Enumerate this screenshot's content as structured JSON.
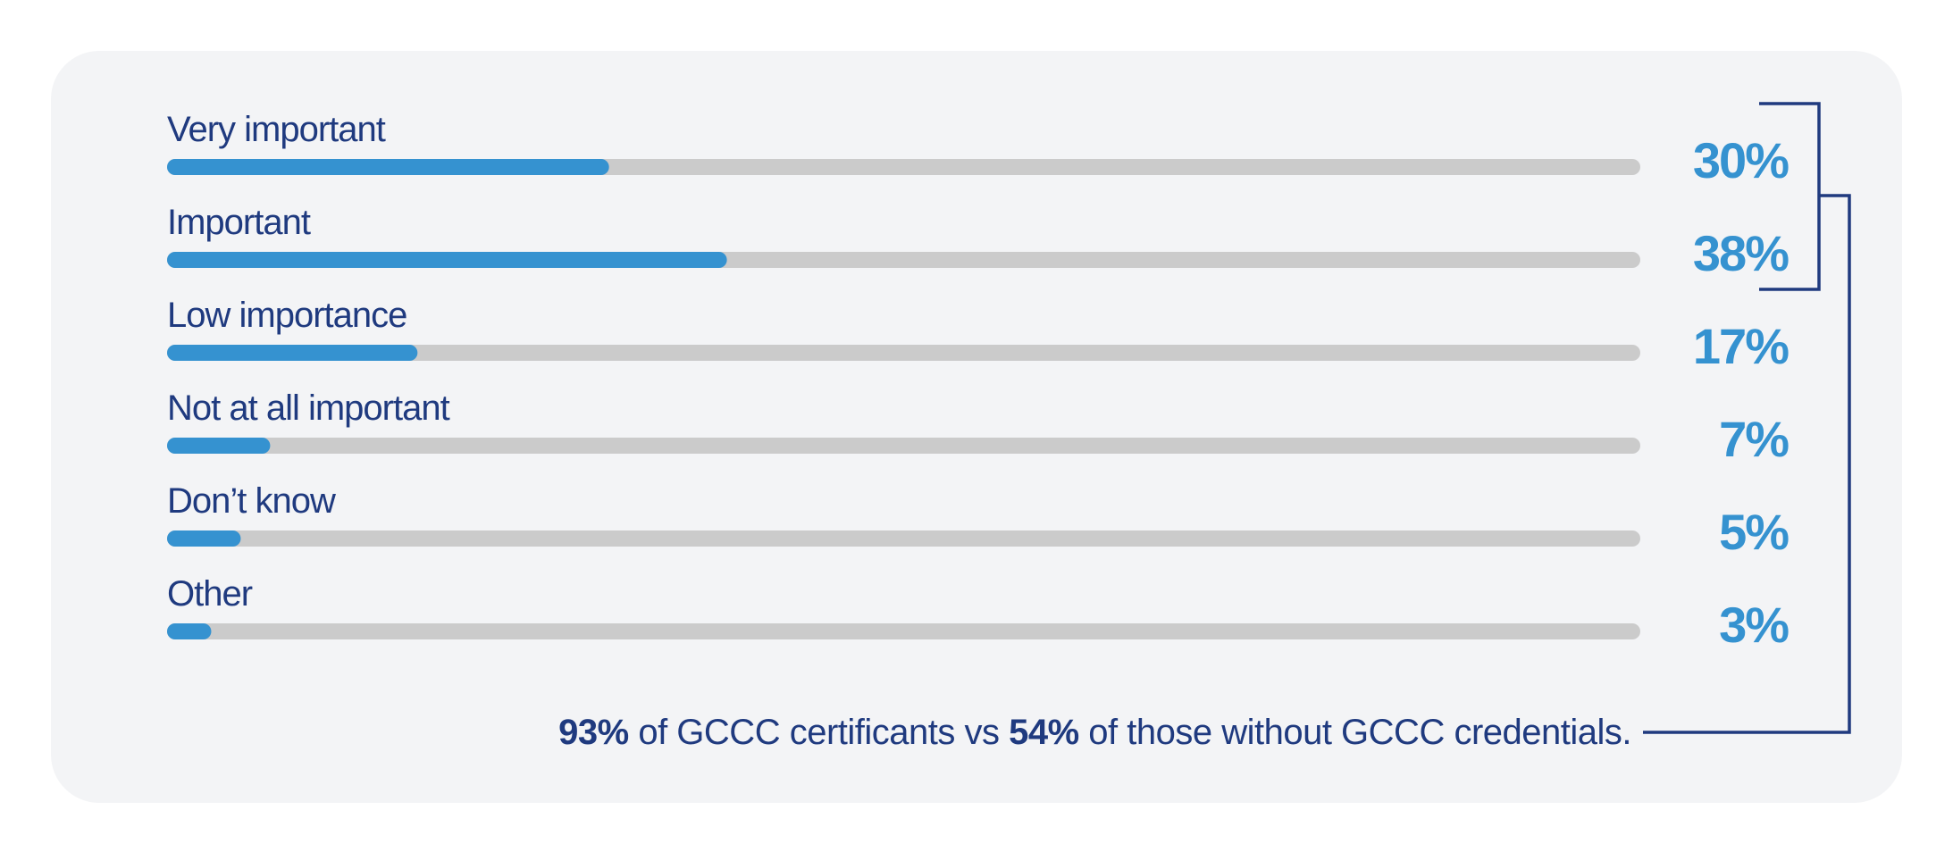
{
  "colors": {
    "background": "#f3f4f6",
    "bar_fill": "#3592d0",
    "bar_track": "#cbcbcb",
    "label_text": "#1f3a7f",
    "value_text": "#3592d0",
    "bracket": "#1f3a7f"
  },
  "chart_data": {
    "type": "bar",
    "orientation": "horizontal",
    "categories": [
      "Very important",
      "Important",
      "Low importance",
      "Not at all important",
      "Don’t know",
      "Other"
    ],
    "values": [
      30,
      38,
      17,
      7,
      5,
      3
    ],
    "value_labels": [
      "30%",
      "38%",
      "17%",
      "7%",
      "5%",
      "3%"
    ],
    "xlim": [
      0,
      100
    ],
    "grid": false,
    "legend": "none"
  },
  "annotation": {
    "stat1": "93%",
    "text1": " of GCCC certificants vs ",
    "stat2": "54%",
    "text2": " of those without GCCC credentials."
  }
}
